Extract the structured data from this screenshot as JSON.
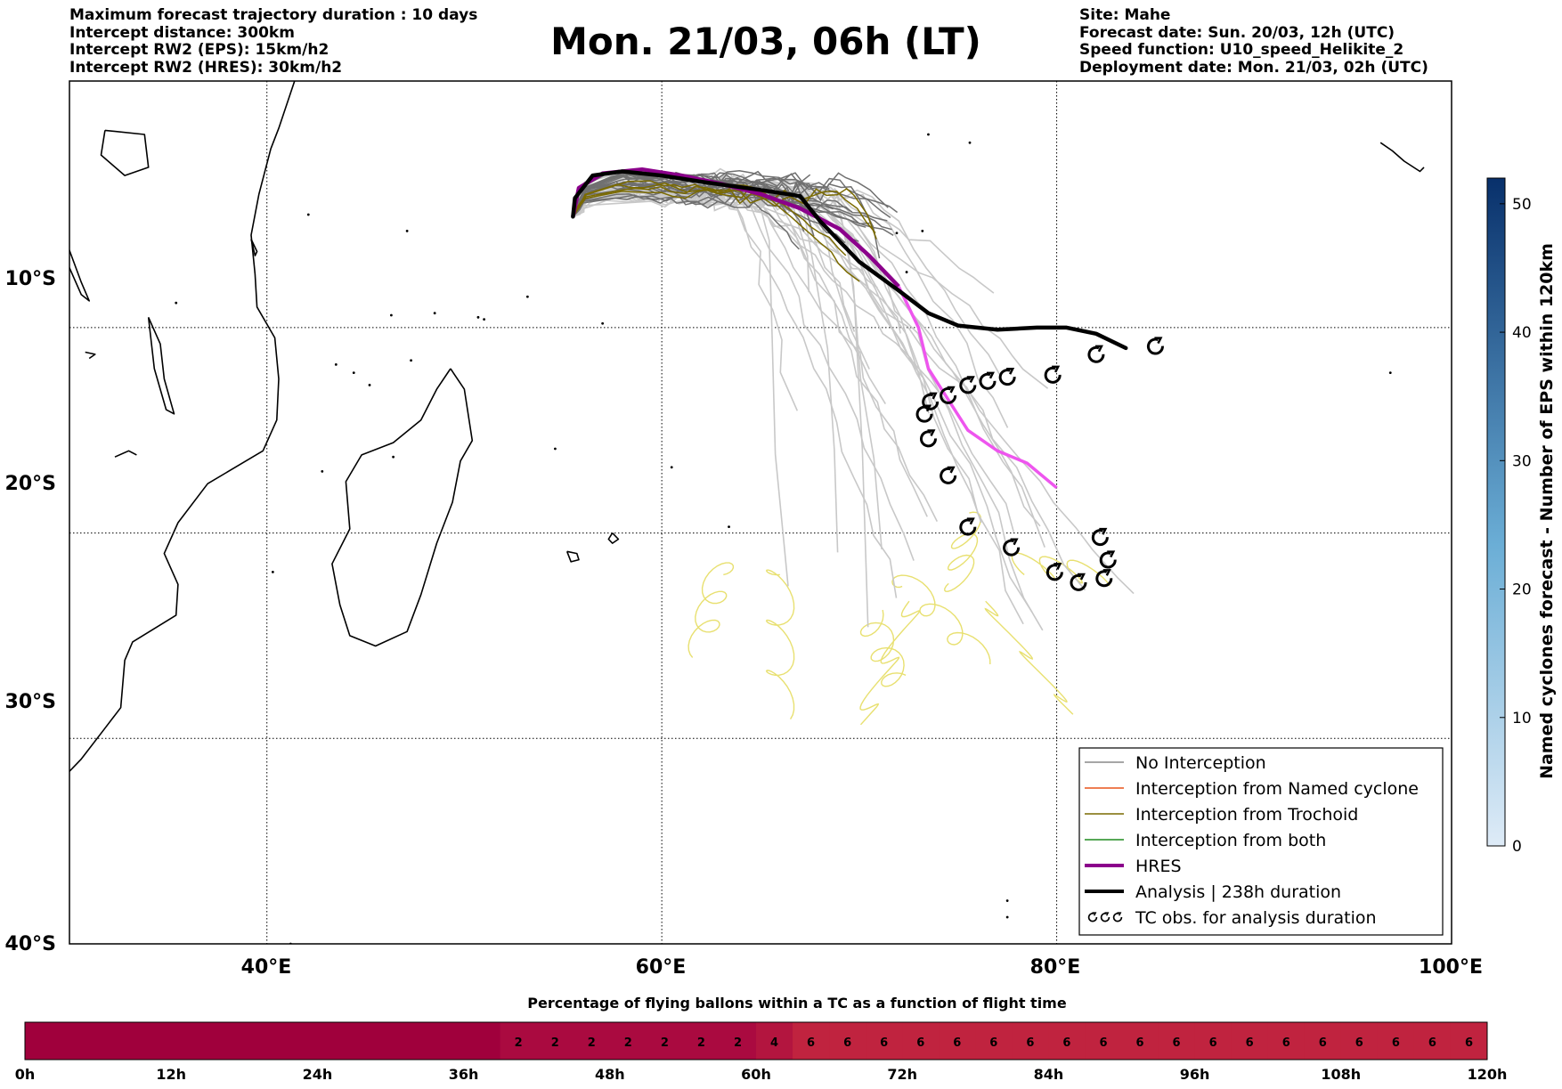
{
  "header_left": [
    "Maximum forecast trajectory duration : 10 days",
    "Intercept distance: 300km",
    "Intercept RW2 (EPS):  15km/h2",
    "Intercept RW2 (HRES): 30km/h2"
  ],
  "title": "Mon. 21/03, 06h (LT)",
  "header_right": [
    "Site: Mahe",
    "Forecast date: Sun. 20/03, 12h (UTC)",
    "Speed function: U10_speed_Helikite_2",
    "Deployment date: Mon. 21/03, 02h (UTC)"
  ],
  "map": {
    "lon_labels": [
      "40°E",
      "60°E",
      "80°E",
      "100°E"
    ],
    "lat_labels": [
      "10°S",
      "20°S",
      "30°S",
      "40°S"
    ],
    "lon_range": [
      30,
      100
    ],
    "lat_range": [
      -40,
      2
    ],
    "graticule": "dotted"
  },
  "legend": {
    "position": "lower-right",
    "items": [
      {
        "label": "No Interception",
        "color": "#888888",
        "width": 1.5
      },
      {
        "label": "Interception from Named cyclone",
        "color": "#e8541a",
        "width": 1.5
      },
      {
        "label": "Interception from Trochoid",
        "color": "#7a6a00",
        "width": 1.5
      },
      {
        "label": "Interception from both",
        "color": "#1e8c1e",
        "width": 1.5
      },
      {
        "label": "HRES",
        "color": "#8b008b",
        "width": 4
      },
      {
        "label": "Analysis | 238h duration",
        "color": "#000000",
        "width": 4
      },
      {
        "label": "TC obs. for analysis duration",
        "color": "#000000",
        "width": 0,
        "symbol": "cyclone-icon"
      }
    ]
  },
  "colorbar": {
    "label": "Named cyclones forecast - Number of EPS within 120km",
    "ticks": [
      "0",
      "10",
      "20",
      "30",
      "40",
      "50"
    ],
    "min": 0,
    "max": 52,
    "color_low": "#deebf7",
    "color_high": "#08306b"
  },
  "percentage_bar": {
    "title": "Percentage of flying ballons within a TC as a function of flight time",
    "time_labels": [
      "0h",
      "12h",
      "24h",
      "36h",
      "48h",
      "60h",
      "72h",
      "84h",
      "96h",
      "108h",
      "120h"
    ],
    "segments": [
      {
        "from_h": 0,
        "to_h": 39,
        "value": "",
        "color": "#a0003c"
      },
      {
        "from_h": 39,
        "to_h": 42,
        "value": "2",
        "color": "#aa0a40"
      },
      {
        "from_h": 42,
        "to_h": 45,
        "value": "2",
        "color": "#aa0a40"
      },
      {
        "from_h": 45,
        "to_h": 48,
        "value": "2",
        "color": "#aa0a40"
      },
      {
        "from_h": 48,
        "to_h": 51,
        "value": "2",
        "color": "#aa0a40"
      },
      {
        "from_h": 51,
        "to_h": 54,
        "value": "2",
        "color": "#aa0a40"
      },
      {
        "from_h": 54,
        "to_h": 57,
        "value": "2",
        "color": "#aa0a40"
      },
      {
        "from_h": 57,
        "to_h": 60,
        "value": "2",
        "color": "#aa0a40"
      },
      {
        "from_h": 60,
        "to_h": 63,
        "value": "4",
        "color": "#b3153f"
      },
      {
        "from_h": 63,
        "to_h": 66,
        "value": "6",
        "color": "#c0233f"
      },
      {
        "from_h": 66,
        "to_h": 69,
        "value": "6",
        "color": "#c0233f"
      },
      {
        "from_h": 69,
        "to_h": 72,
        "value": "6",
        "color": "#c0233f"
      },
      {
        "from_h": 72,
        "to_h": 75,
        "value": "6",
        "color": "#c0233f"
      },
      {
        "from_h": 75,
        "to_h": 78,
        "value": "6",
        "color": "#c0233f"
      },
      {
        "from_h": 78,
        "to_h": 81,
        "value": "6",
        "color": "#c0233f"
      },
      {
        "from_h": 81,
        "to_h": 84,
        "value": "6",
        "color": "#c0233f"
      },
      {
        "from_h": 84,
        "to_h": 87,
        "value": "6",
        "color": "#c0233f"
      },
      {
        "from_h": 87,
        "to_h": 90,
        "value": "6",
        "color": "#c0233f"
      },
      {
        "from_h": 90,
        "to_h": 93,
        "value": "6",
        "color": "#c0233f"
      },
      {
        "from_h": 93,
        "to_h": 96,
        "value": "6",
        "color": "#c0233f"
      },
      {
        "from_h": 96,
        "to_h": 99,
        "value": "6",
        "color": "#c0233f"
      },
      {
        "from_h": 99,
        "to_h": 102,
        "value": "6",
        "color": "#c0233f"
      },
      {
        "from_h": 102,
        "to_h": 105,
        "value": "6",
        "color": "#c0233f"
      },
      {
        "from_h": 105,
        "to_h": 108,
        "value": "6",
        "color": "#c0233f"
      },
      {
        "from_h": 108,
        "to_h": 111,
        "value": "6",
        "color": "#c0233f"
      },
      {
        "from_h": 111,
        "to_h": 114,
        "value": "6",
        "color": "#c0233f"
      },
      {
        "from_h": 114,
        "to_h": 117,
        "value": "6",
        "color": "#c0233f"
      },
      {
        "from_h": 117,
        "to_h": 120,
        "value": "6",
        "color": "#c0233f"
      }
    ]
  },
  "colors": {
    "ensemble_light": "#c8c8c8",
    "ensemble_dark": "#707070",
    "hres": "#8b008b",
    "hres_late": "#ee55ee",
    "analysis": "#000000",
    "yellow_tracks": "#e8e070",
    "trochoid": "#7a6a00",
    "coastline": "#000000"
  },
  "chart_data": {
    "type": "map",
    "analysis_track": {
      "lon": [
        55.5,
        55.6,
        56.5,
        58,
        60,
        62,
        65,
        67,
        68,
        70,
        72,
        73.5,
        75,
        77,
        79,
        80.5,
        82,
        83.5
      ],
      "lat": [
        -4.6,
        -3.7,
        -2.6,
        -2.4,
        -2.6,
        -2.9,
        -3.3,
        -3.6,
        -4.8,
        -6.8,
        -8.2,
        -9.3,
        -9.9,
        -10.1,
        -10.0,
        -10.0,
        -10.3,
        -11.0
      ]
    },
    "hres_track": {
      "lon": [
        55.5,
        55.8,
        57,
        59,
        61,
        63,
        65,
        67,
        69,
        70.5,
        72,
        73,
        73.5,
        74.5,
        75.5,
        77,
        78.5,
        80
      ],
      "lat": [
        -4.6,
        -3.2,
        -2.5,
        -2.3,
        -2.6,
        -3.0,
        -3.5,
        -4.2,
        -5.2,
        -6.5,
        -8.0,
        -10.0,
        -12.0,
        -13.5,
        -15.0,
        -16.0,
        -16.6,
        -17.8
      ]
    },
    "tc_observations": [
      {
        "lon": 85.0,
        "lat": -10.9
      },
      {
        "lon": 82.0,
        "lat": -11.3
      },
      {
        "lon": 79.8,
        "lat": -12.3
      },
      {
        "lon": 77.5,
        "lat": -12.4
      },
      {
        "lon": 76.5,
        "lat": -12.6
      },
      {
        "lon": 75.5,
        "lat": -12.8
      },
      {
        "lon": 74.5,
        "lat": -13.3
      },
      {
        "lon": 73.6,
        "lat": -13.6
      },
      {
        "lon": 73.3,
        "lat": -14.2
      },
      {
        "lon": 73.5,
        "lat": -15.4
      },
      {
        "lon": 74.5,
        "lat": -17.2
      },
      {
        "lon": 75.5,
        "lat": -19.7
      },
      {
        "lon": 77.7,
        "lat": -20.7
      },
      {
        "lon": 82.2,
        "lat": -20.2
      },
      {
        "lon": 82.6,
        "lat": -21.3
      },
      {
        "lon": 79.9,
        "lat": -21.9
      },
      {
        "lon": 82.4,
        "lat": -22.2
      },
      {
        "lon": 81.1,
        "lat": -22.4
      }
    ]
  }
}
